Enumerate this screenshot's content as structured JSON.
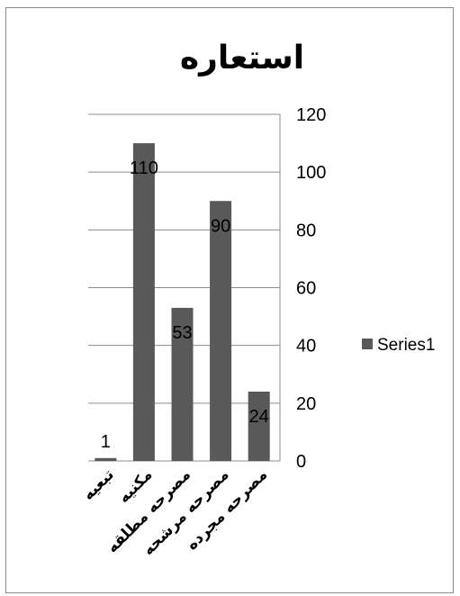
{
  "chart_data": {
    "type": "bar",
    "title": "استعاره",
    "categories": [
      "تبعیه",
      "مکنیه",
      "مصرحه مطلقه",
      "مصرحه مرشحه",
      "مصرحه مجرده"
    ],
    "series": [
      {
        "name": "Series1",
        "values": [
          1,
          110,
          53,
          90,
          24
        ]
      }
    ],
    "ylim": [
      0,
      120
    ],
    "yticks": [
      0,
      20,
      40,
      60,
      80,
      100,
      120
    ],
    "yaxis_position": "right",
    "grid": true,
    "legend": "right",
    "bar_color": "#595959",
    "grid_color": "#8c8c8c",
    "text_color": "#000000"
  }
}
